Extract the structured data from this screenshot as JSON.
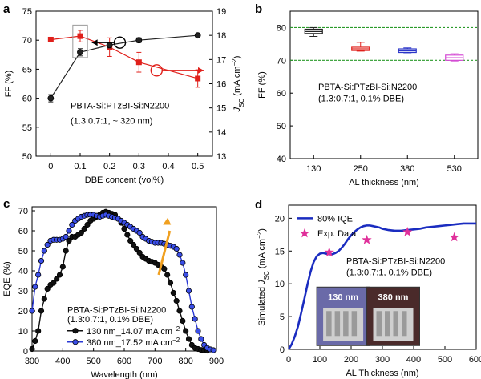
{
  "chart_data": [
    {
      "panel": "a",
      "type": "line",
      "x": [
        0,
        0.1,
        0.2,
        0.3,
        0.5
      ],
      "xlabel": "DBE concent (vol%)",
      "ylabel_left": "FF (%)",
      "ylabel_right_main": "J",
      "ylabel_right_sub": "SC",
      "ylabel_right_unit": " (mA cm",
      "ylabel_right_exp": "−2",
      "ylabel_right_close": ")",
      "xticks": [
        "0",
        "0.1",
        "0.2",
        "0.3",
        "0.4",
        "0.5"
      ],
      "xlim": [
        -0.05,
        0.55
      ],
      "ylim_left": [
        50,
        75
      ],
      "yticks_left": [
        "50",
        "55",
        "60",
        "65",
        "70",
        "75"
      ],
      "ylim_right": [
        13,
        19
      ],
      "yticks_right": [
        "13",
        "14",
        "15",
        "16",
        "17",
        "18",
        "19"
      ],
      "series": [
        {
          "axis": "left",
          "color": "#e0201b",
          "marker": "square",
          "values": [
            70.1,
            70.7,
            68.8,
            66.2,
            63.4
          ],
          "err": [
            0.4,
            1.0,
            1.6,
            1.7,
            1.5
          ]
        },
        {
          "axis": "right",
          "color": "#222222",
          "marker": "circle",
          "values": [
            15.4,
            17.3,
            17.6,
            17.8,
            18.0
          ],
          "err": [
            0.15,
            0.15,
            0.12,
            0.1,
            0.05
          ]
        }
      ],
      "annotation_line1": "PBTA-Si:PTzBI-Si:N2200",
      "annotation_line2": "(1.3:0.7:1, ~ 320 nm)"
    },
    {
      "panel": "b",
      "type": "box",
      "categories": [
        "130",
        "250",
        "380",
        "530"
      ],
      "xlabel": "AL thickness (nm)",
      "ylabel": "FF (%)",
      "ylim": [
        40,
        85
      ],
      "yticks": [
        "40",
        "50",
        "60",
        "70",
        "80"
      ],
      "reference_lines": [
        80,
        70
      ],
      "boxes": [
        {
          "color": "#222222",
          "min": 77.3,
          "q1": 78.2,
          "median": 78.8,
          "q3": 79.5,
          "max": 80.0
        },
        {
          "color": "#e0201b",
          "min": 72.8,
          "q1": 73.0,
          "median": 73.5,
          "q3": 74.0,
          "max": 75.5
        },
        {
          "color": "#2b35c8",
          "min": 72.3,
          "q1": 72.4,
          "median": 72.9,
          "q3": 73.5,
          "max": 73.8
        },
        {
          "color": "#d44ad4",
          "min": 69.8,
          "q1": 70.0,
          "median": 70.8,
          "q3": 71.6,
          "max": 72.0
        }
      ],
      "annotation_line1": "PBTA-Si:PTzBI-Si:N2200",
      "annotation_line2": "(1.3:0.7:1, 0.1% DBE)"
    },
    {
      "panel": "c",
      "type": "line",
      "xlabel": "Wavelength (nm)",
      "ylabel": "EQE (%)",
      "xlim": [
        300,
        900
      ],
      "xticks": [
        "300",
        "400",
        "500",
        "600",
        "700",
        "800",
        "900"
      ],
      "ylim": [
        0,
        72
      ],
      "yticks": [
        "0",
        "10",
        "20",
        "30",
        "40",
        "50",
        "60",
        "70"
      ],
      "series": [
        {
          "name": "130 nm_14.07 mA cm",
          "name_exp": "−2",
          "color": "#111111",
          "marker_fill": "#111111",
          "x": [
            300,
            310,
            320,
            330,
            340,
            350,
            360,
            370,
            380,
            390,
            400,
            410,
            420,
            430,
            440,
            450,
            460,
            470,
            480,
            490,
            500,
            510,
            520,
            530,
            540,
            550,
            560,
            570,
            580,
            590,
            600,
            610,
            620,
            630,
            640,
            650,
            660,
            670,
            680,
            690,
            700,
            710,
            720,
            730,
            740,
            750,
            760,
            770,
            780,
            790,
            800,
            810,
            820,
            830,
            840,
            850,
            860,
            870
          ],
          "y": [
            1,
            5,
            10,
            20,
            26,
            31,
            33,
            34,
            36,
            38,
            42,
            50,
            55,
            57,
            57,
            58,
            59,
            61,
            63,
            65,
            66,
            67,
            68,
            69,
            69.5,
            69,
            68.5,
            68,
            66,
            64,
            61,
            58,
            55,
            53,
            51,
            49,
            47,
            46,
            45,
            44.5,
            44,
            43,
            42,
            41,
            38,
            34,
            29,
            25,
            20,
            15,
            10,
            6,
            3,
            1.5,
            1,
            0.5,
            0.3,
            0.2
          ]
        },
        {
          "name": "380 nm_17.52 mA cm",
          "name_exp": "−2",
          "color": "#2a39d6",
          "marker_fill": "#3a4ee8",
          "x": [
            300,
            310,
            320,
            330,
            340,
            350,
            360,
            370,
            380,
            390,
            400,
            410,
            420,
            430,
            440,
            450,
            460,
            470,
            480,
            490,
            500,
            510,
            520,
            530,
            540,
            550,
            560,
            570,
            580,
            590,
            600,
            610,
            620,
            630,
            640,
            650,
            660,
            670,
            680,
            690,
            700,
            710,
            720,
            730,
            740,
            750,
            760,
            770,
            780,
            790,
            800,
            810,
            820,
            830,
            840,
            850,
            860,
            870,
            880,
            890
          ],
          "y": [
            20,
            32,
            38,
            45,
            50,
            53,
            55,
            55.5,
            55.5,
            55.5,
            56,
            57,
            60,
            63,
            65,
            66,
            67,
            67.5,
            68,
            68,
            68,
            67.5,
            67,
            67.5,
            68,
            67.5,
            67,
            66.5,
            66,
            65,
            64,
            63,
            62,
            61,
            60,
            59,
            57,
            56,
            55,
            54.5,
            54,
            54,
            54,
            53.5,
            53,
            52.5,
            52,
            51,
            48,
            44,
            38,
            30,
            22,
            16,
            10,
            6,
            3,
            1.5,
            0.8,
            0.4
          ]
        }
      ],
      "annotation_line1": "PBTA-Si:PTzBI-Si:N2200",
      "annotation_line2": "(1.3:0.7:1, 0.1% DBE)"
    },
    {
      "panel": "d",
      "type": "line",
      "xlabel": "AL Thickness (nm)",
      "ylabel_main": "Simulated ",
      "ylabel_j": "J",
      "ylabel_sub": "SC",
      "ylabel_unit": " (mA cm",
      "ylabel_exp": "−2",
      "ylabel_close": ")",
      "xlim": [
        0,
        600
      ],
      "xticks": [
        "0",
        "100",
        "200",
        "300",
        "400",
        "500",
        "600"
      ],
      "ylim": [
        0,
        22
      ],
      "yticks": [
        "0",
        "5",
        "10",
        "15",
        "20"
      ],
      "series": [
        {
          "name": "80% IQE",
          "color": "#1a2cc0",
          "x": [
            0,
            10,
            20,
            30,
            40,
            50,
            60,
            70,
            80,
            90,
            100,
            110,
            120,
            130,
            140,
            150,
            160,
            170,
            180,
            190,
            200,
            210,
            220,
            230,
            240,
            250,
            260,
            270,
            280,
            290,
            300,
            320,
            340,
            360,
            380,
            400,
            420,
            440,
            460,
            480,
            500,
            520,
            540,
            560,
            580,
            600
          ],
          "y": [
            0,
            0.8,
            2.0,
            3.5,
            5.5,
            7.6,
            9.8,
            11.8,
            13.3,
            14.2,
            14.6,
            14.7,
            14.6,
            14.5,
            14.5,
            14.7,
            15.0,
            15.5,
            16.1,
            16.8,
            17.4,
            17.9,
            18.3,
            18.6,
            18.8,
            18.9,
            18.9,
            18.8,
            18.7,
            18.6,
            18.4,
            18.2,
            18.1,
            18.1,
            18.2,
            18.3,
            18.4,
            18.6,
            18.7,
            18.8,
            18.9,
            19.0,
            19.1,
            19.2,
            19.2,
            19.2
          ]
        },
        {
          "name": "Exp. Data",
          "color": "#e0309a",
          "marker": "star",
          "x": [
            130,
            250,
            380,
            530
          ],
          "y": [
            14.8,
            16.7,
            17.9,
            17.1
          ]
        }
      ],
      "annotation_line1": "PBTA-Si:PTzBI-Si:N2200",
      "annotation_line2": "(1.3:0.7:1, 0.1% DBE)",
      "inset_labels": [
        "130 nm",
        "380 nm"
      ]
    }
  ]
}
